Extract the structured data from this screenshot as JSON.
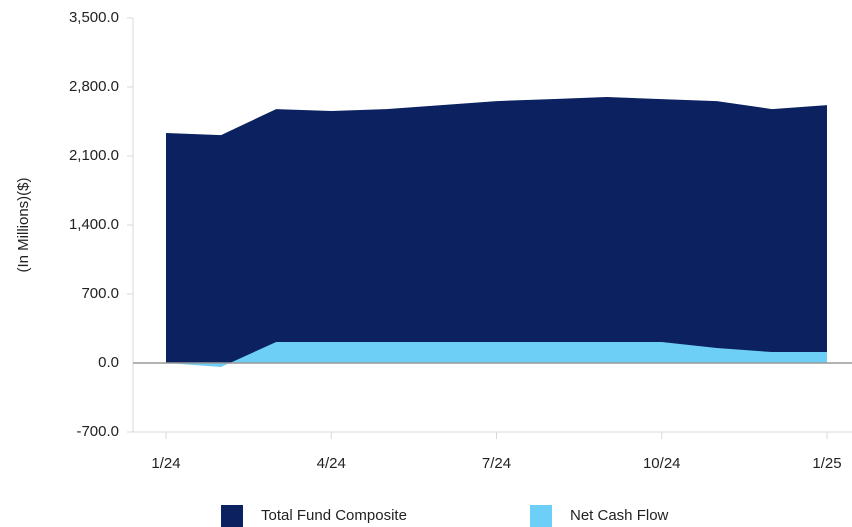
{
  "chart_data": {
    "type": "area",
    "y_axis_label": "(In Millions)($)",
    "categories": [
      "1/24",
      null,
      null,
      "4/24",
      null,
      null,
      "7/24",
      null,
      null,
      "10/24",
      null,
      null,
      "1/25"
    ],
    "series": [
      {
        "name": "Total Fund Composite",
        "color": "#0b2160",
        "values": [
          2333,
          2312,
          2576,
          2556,
          2576,
          2616,
          2657,
          2677,
          2698,
          2677,
          2657,
          2576,
          2616
        ]
      },
      {
        "name": "Net Cash Flow",
        "color": "#6dcff6",
        "values": [
          0,
          -40,
          213,
          213,
          213,
          213,
          213,
          213,
          213,
          213,
          152,
          111,
          111
        ]
      }
    ],
    "ylim": [
      -700,
      3500
    ],
    "yticks": [
      {
        "value": -700,
        "label": "-700.0"
      },
      {
        "value": 0,
        "label": "0.0"
      },
      {
        "value": 700,
        "label": "700.0"
      },
      {
        "value": 1400,
        "label": "1,400.0"
      },
      {
        "value": 2100,
        "label": "2,100.0"
      },
      {
        "value": 2800,
        "label": "2,800.0"
      },
      {
        "value": 3500,
        "label": "3,500.0"
      }
    ],
    "legend": "bottom"
  }
}
